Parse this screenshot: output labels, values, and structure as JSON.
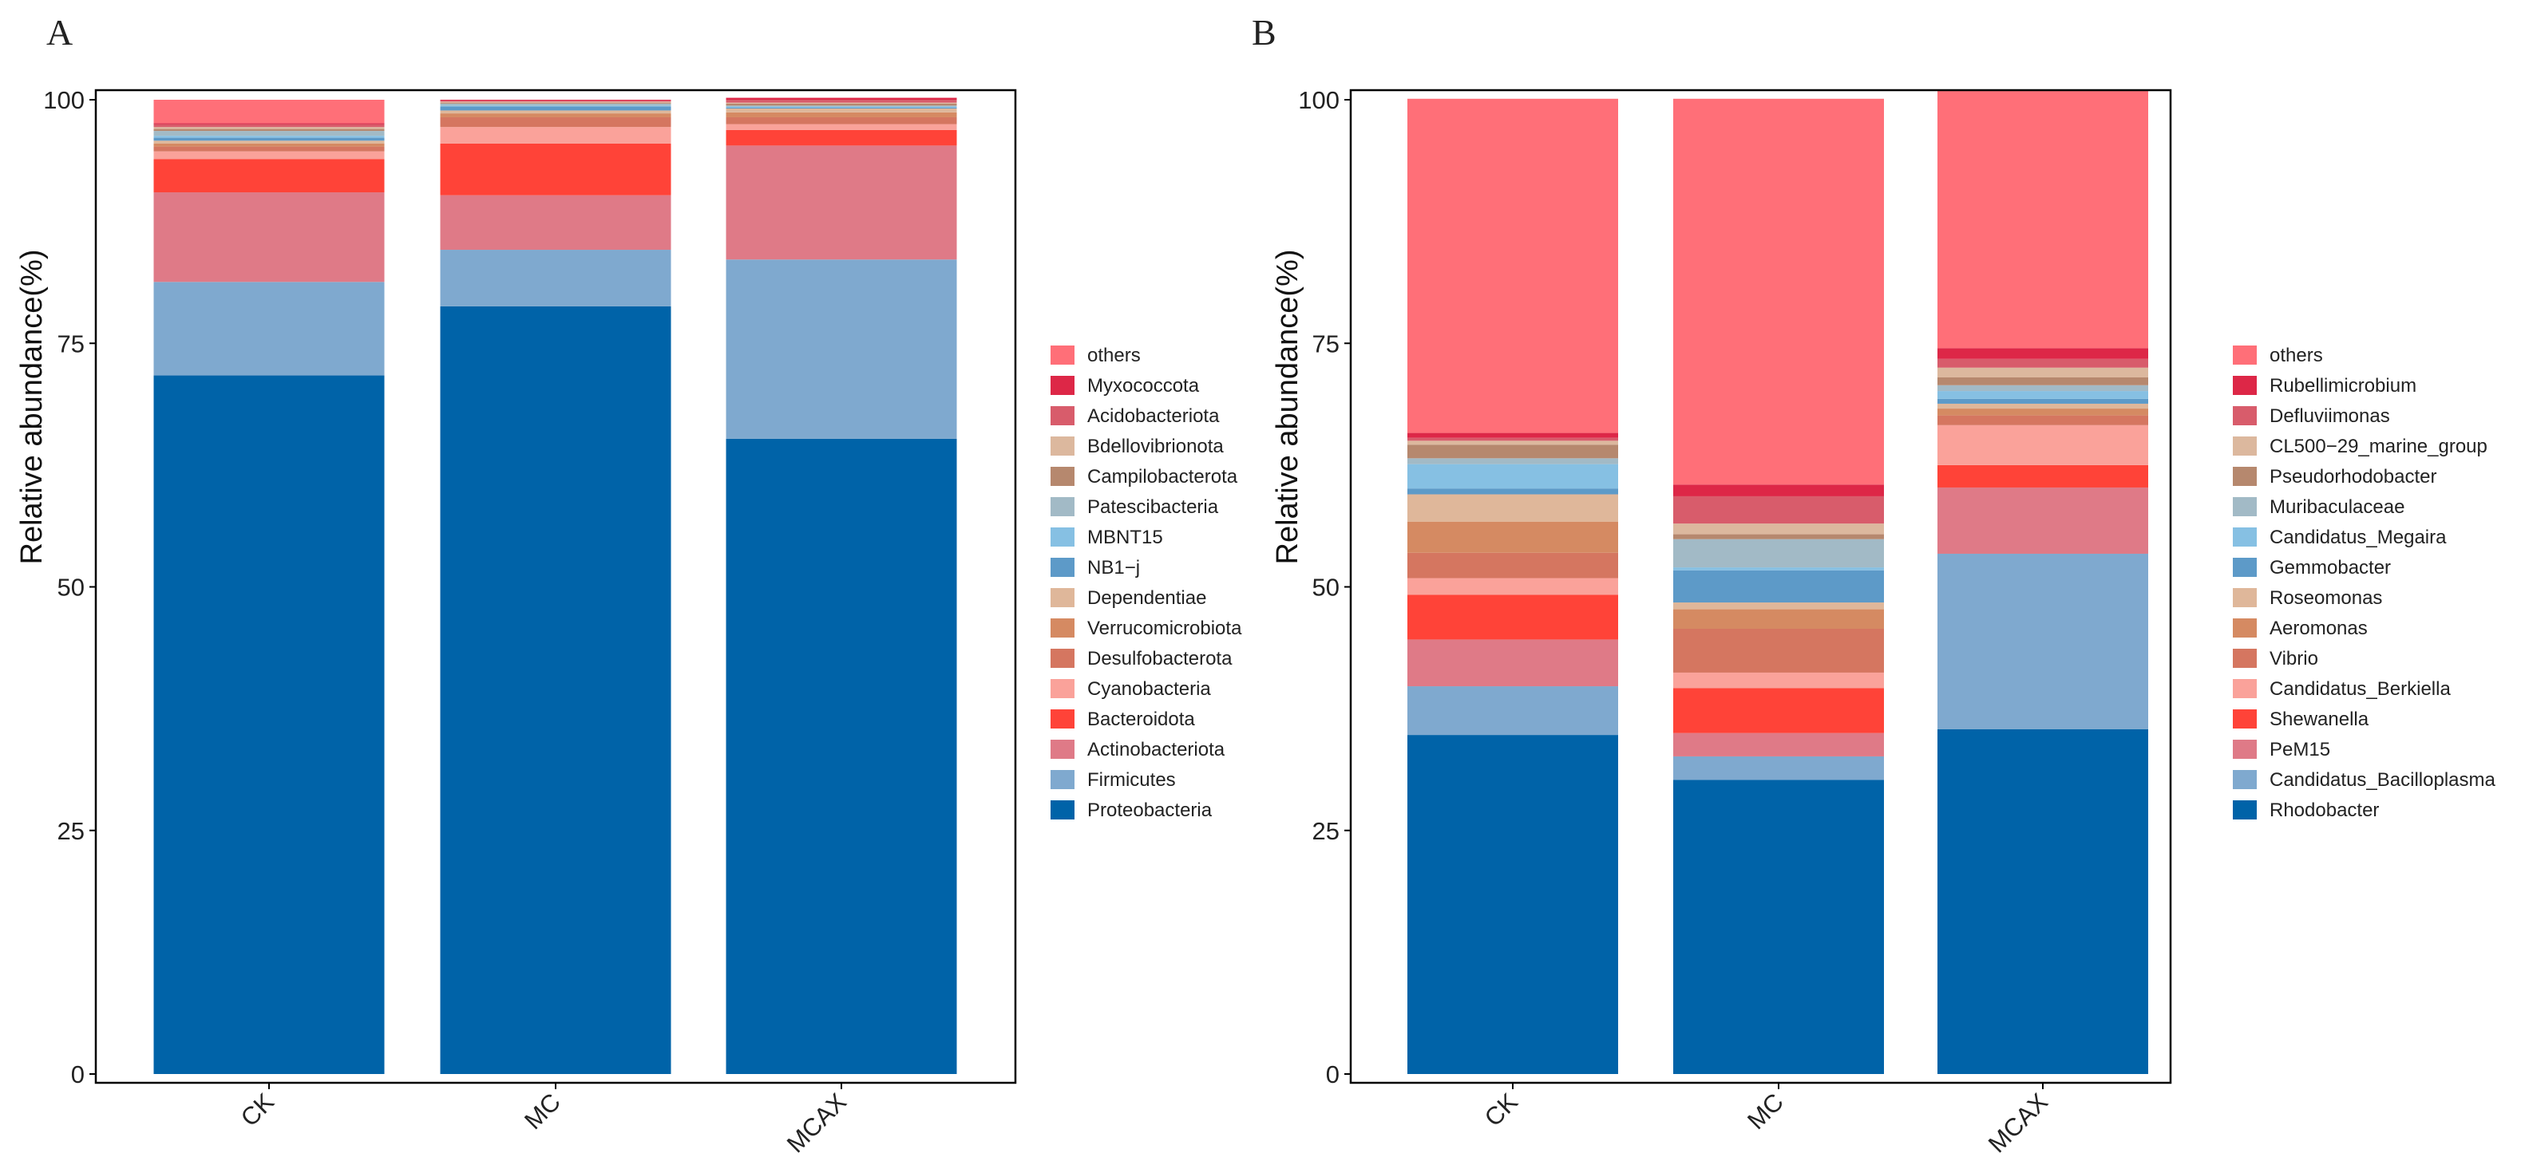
{
  "chart_data": [
    {
      "type": "stacked-bar",
      "panel_label": "A",
      "ylabel": "Relative abundance(%)",
      "xlabel": "",
      "ylim": [
        0,
        100
      ],
      "yticks": [
        "0",
        "25",
        "50",
        "75",
        "100"
      ],
      "categories": [
        "CK",
        "MC",
        "MCAX"
      ],
      "legend_position": "right",
      "series": [
        {
          "name": "Proteobacteria",
          "color": "#0063A8",
          "values": [
            71.7,
            78.8,
            65.2
          ]
        },
        {
          "name": "Firmicutes",
          "color": "#7FA9CF",
          "values": [
            9.6,
            5.8,
            18.4
          ]
        },
        {
          "name": "Actinobacteriota",
          "color": "#DF7A87",
          "values": [
            9.2,
            5.6,
            11.7
          ]
        },
        {
          "name": "Bacteroidota",
          "color": "#FF4338",
          "values": [
            3.4,
            5.3,
            1.6
          ]
        },
        {
          "name": "Cyanobacteria",
          "color": "#FAA29A",
          "values": [
            0.8,
            1.7,
            0.6
          ]
        },
        {
          "name": "Desulfobacterota",
          "color": "#D57660",
          "values": [
            0.5,
            1.0,
            0.7
          ]
        },
        {
          "name": "Verrucomicrobiota",
          "color": "#D58A62",
          "values": [
            0.3,
            0.4,
            0.5
          ]
        },
        {
          "name": "Dependentiae",
          "color": "#DFB79A",
          "values": [
            0.3,
            0.3,
            0.4
          ]
        },
        {
          "name": "NB1−j",
          "color": "#5D9AC8",
          "values": [
            0.3,
            0.4,
            0.1
          ]
        },
        {
          "name": "MBNT15",
          "color": "#86C0E3",
          "values": [
            0.2,
            0.1,
            0.1
          ]
        },
        {
          "name": "Patescibacteria",
          "color": "#A2BAC6",
          "values": [
            0.5,
            0.2,
            0.1
          ]
        },
        {
          "name": "Campilobacterota",
          "color": "#B6886E",
          "values": [
            0.2,
            0.1,
            0.2
          ]
        },
        {
          "name": "Bdellovibrionota",
          "color": "#DCB89E",
          "values": [
            0.2,
            0.1,
            0.1
          ]
        },
        {
          "name": "Acidobacteriota",
          "color": "#D85C6B",
          "values": [
            0.3,
            0.1,
            0.3
          ]
        },
        {
          "name": "Myxococcota",
          "color": "#DD2747",
          "values": [
            0.1,
            0.1,
            0.2
          ]
        },
        {
          "name": "others",
          "color": "#FF6F78",
          "values": [
            2.4,
            0.0,
            0.0
          ]
        }
      ]
    },
    {
      "type": "stacked-bar",
      "panel_label": "B",
      "ylabel": "Relative abundance(%)",
      "xlabel": "",
      "ylim": [
        0,
        100
      ],
      "yticks": [
        "0",
        "25",
        "50",
        "75",
        "100"
      ],
      "categories": [
        "CK",
        "MC",
        "MCAX"
      ],
      "legend_position": "right",
      "series": [
        {
          "name": "Rhodobacter",
          "color": "#0063A8",
          "values": [
            34.8,
            30.2,
            35.4
          ]
        },
        {
          "name": "Candidatus_Bacilloplasma",
          "color": "#7FA9CF",
          "values": [
            5.0,
            2.4,
            18.0
          ]
        },
        {
          "name": "PeM15",
          "color": "#DF7A87",
          "values": [
            4.8,
            2.4,
            6.8
          ]
        },
        {
          "name": "Shewanella",
          "color": "#FF4338",
          "values": [
            4.6,
            4.6,
            2.3
          ]
        },
        {
          "name": "Candidatus_Berkiella",
          "color": "#FAA29A",
          "values": [
            1.7,
            1.6,
            4.1
          ]
        },
        {
          "name": "Vibrio",
          "color": "#D57660",
          "values": [
            2.6,
            4.5,
            1.0
          ]
        },
        {
          "name": "Aeromonas",
          "color": "#D58A62",
          "values": [
            3.2,
            2.0,
            0.7
          ]
        },
        {
          "name": "Roseomonas",
          "color": "#DFB79A",
          "values": [
            2.8,
            0.7,
            0.5
          ]
        },
        {
          "name": "Gemmobacter",
          "color": "#5D9AC8",
          "values": [
            0.6,
            3.3,
            0.5
          ]
        },
        {
          "name": "Candidatus_Megaira",
          "color": "#86C0E3",
          "values": [
            2.5,
            0.3,
            0.8
          ]
        },
        {
          "name": "Muribaculaceae",
          "color": "#A2BAC6",
          "values": [
            0.6,
            2.9,
            0.6
          ]
        },
        {
          "name": "Pseudorhodobacter",
          "color": "#B6886E",
          "values": [
            1.4,
            0.5,
            0.8
          ]
        },
        {
          "name": "CL500−29_marine_group",
          "color": "#DCB89E",
          "values": [
            0.4,
            1.1,
            1.0
          ]
        },
        {
          "name": "Defluviimonas",
          "color": "#D85C6B",
          "values": [
            0.3,
            2.8,
            0.9
          ]
        },
        {
          "name": "Rubellimicrobium",
          "color": "#DD2747",
          "values": [
            0.5,
            1.2,
            1.1
          ]
        },
        {
          "name": "others",
          "color": "#FF6F78",
          "values": [
            34.3,
            39.6,
            26.5
          ]
        }
      ]
    }
  ]
}
